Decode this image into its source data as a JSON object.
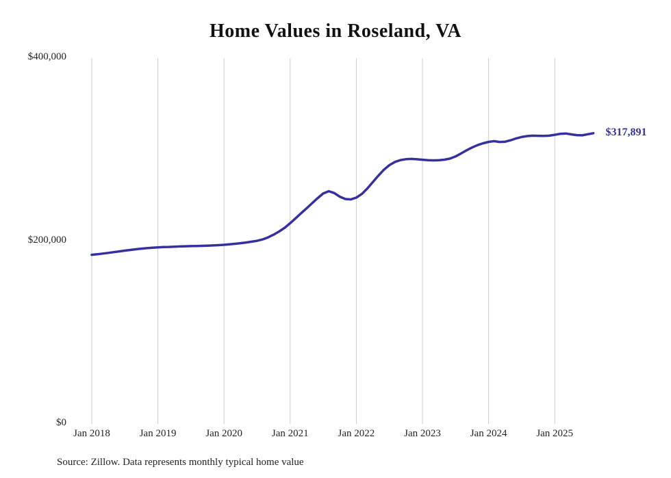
{
  "page": {
    "background": "#ffffff"
  },
  "chart": {
    "title": "Home Values in Roseland, VA",
    "source_note": "Source: Zillow. Data represents monthly typical home value",
    "end_label": "$317,891",
    "line_color": "#34319e",
    "grid_color": "#cccccc",
    "label_color": "#222222"
  },
  "chart_data": {
    "type": "line",
    "title": "Home Values in Roseland, VA",
    "xlabel": "",
    "ylabel": "",
    "x_start": "Jan 2018",
    "x_interval": "monthly",
    "x_tick_labels": [
      "Jan 2018",
      "Jan 2019",
      "Jan 2020",
      "Jan 2021",
      "Jan 2022",
      "Jan 2023",
      "Jan 2024",
      "Jan 2025"
    ],
    "y_tick_labels": [
      "$0",
      "$200,000",
      "$400,000"
    ],
    "y_tick_values": [
      0,
      200000,
      400000
    ],
    "ylim": [
      0,
      400000
    ],
    "grid": "vertical-only",
    "legend": "none",
    "annotation_last_value": "$317,891",
    "last_value": 317891,
    "series": [
      {
        "name": "Typical home value",
        "values": [
          185000,
          185600,
          186300,
          187100,
          187900,
          188700,
          189500,
          190300,
          191000,
          191700,
          192200,
          192700,
          193100,
          193400,
          193600,
          193900,
          194100,
          194300,
          194500,
          194600,
          194800,
          195000,
          195200,
          195500,
          195900,
          196400,
          197000,
          197700,
          198400,
          199300,
          200300,
          201800,
          204000,
          207000,
          210500,
          214500,
          219500,
          225000,
          230500,
          236000,
          241500,
          247000,
          252000,
          254500,
          252500,
          248500,
          246000,
          245500,
          247500,
          251500,
          257500,
          264500,
          271500,
          278000,
          283000,
          286500,
          288500,
          289500,
          289800,
          289400,
          288900,
          288400,
          288200,
          288400,
          289000,
          290200,
          292500,
          295800,
          299200,
          302300,
          304900,
          306900,
          308400,
          309200,
          308300,
          308600,
          310200,
          312200,
          313800,
          314800,
          315200,
          315100,
          314900,
          315200,
          316200,
          317200,
          317600,
          316600,
          315800,
          315600,
          316800,
          317891
        ]
      }
    ]
  }
}
